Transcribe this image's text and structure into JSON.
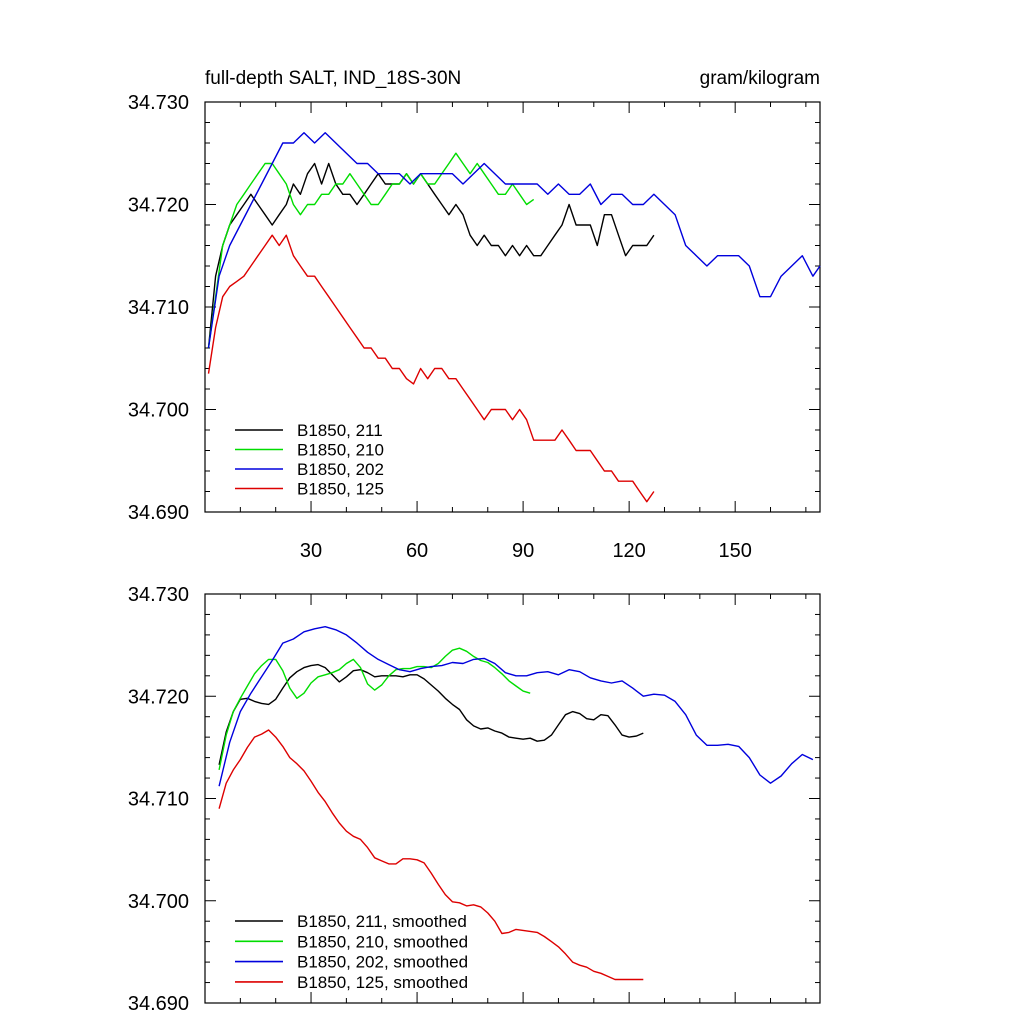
{
  "chart_data": [
    {
      "type": "line",
      "title_left": "full-depth SALT, IND_18S-30N",
      "title_right": "gram/kilogram",
      "xlim": [
        0,
        174
      ],
      "ylim": [
        34.69,
        34.73
      ],
      "x_ticks": [
        30,
        60,
        90,
        120,
        150
      ],
      "x_tick_labels": [
        "30",
        "60",
        "90",
        "120",
        "150"
      ],
      "y_ticks": [
        34.69,
        34.7,
        34.71,
        34.72,
        34.73
      ],
      "y_tick_labels": [
        "34.690",
        "34.700",
        "34.710",
        "34.720",
        "34.730"
      ],
      "legend_position": "bottom-left",
      "series": [
        {
          "name": "B1850, 211",
          "color": "#000000",
          "x": [
            1,
            3,
            5,
            7,
            9,
            11,
            13,
            15,
            17,
            19,
            21,
            23,
            25,
            27,
            29,
            31,
            33,
            35,
            37,
            39,
            41,
            43,
            45,
            47,
            49,
            51,
            53,
            55,
            57,
            59,
            61,
            63,
            65,
            67,
            69,
            71,
            73,
            75,
            77,
            79,
            81,
            83,
            85,
            87,
            89,
            91,
            93,
            95,
            97,
            99,
            101,
            103,
            105,
            107,
            109,
            111,
            113,
            115,
            117,
            119,
            121,
            123,
            125,
            127
          ],
          "y": [
            34.706,
            34.713,
            34.716,
            34.718,
            34.719,
            34.72,
            34.721,
            34.72,
            34.719,
            34.718,
            34.719,
            34.72,
            34.722,
            34.721,
            34.723,
            34.724,
            34.722,
            34.724,
            34.722,
            34.721,
            34.721,
            34.72,
            34.721,
            34.722,
            34.723,
            34.722,
            34.722,
            34.722,
            34.723,
            34.722,
            34.723,
            34.722,
            34.721,
            34.72,
            34.719,
            34.72,
            34.719,
            34.717,
            34.716,
            34.717,
            34.716,
            34.716,
            34.715,
            34.716,
            34.715,
            34.716,
            34.715,
            34.715,
            34.716,
            34.717,
            34.718,
            34.72,
            34.718,
            34.718,
            34.718,
            34.716,
            34.719,
            34.719,
            34.717,
            34.715,
            34.716,
            34.716,
            34.716,
            34.717
          ]
        },
        {
          "name": "B1850, 210",
          "color": "#00dd00",
          "x": [
            1,
            3,
            5,
            7,
            9,
            11,
            13,
            15,
            17,
            19,
            21,
            23,
            25,
            27,
            29,
            31,
            33,
            35,
            37,
            39,
            41,
            43,
            45,
            47,
            49,
            51,
            53,
            55,
            57,
            59,
            61,
            63,
            65,
            67,
            69,
            71,
            73,
            75,
            77,
            79,
            81,
            83,
            85,
            87,
            89,
            91,
            93
          ],
          "y": [
            34.706,
            34.711,
            34.716,
            34.718,
            34.72,
            34.721,
            34.722,
            34.723,
            34.724,
            34.724,
            34.723,
            34.722,
            34.72,
            34.719,
            34.72,
            34.72,
            34.721,
            34.721,
            34.722,
            34.722,
            34.723,
            34.722,
            34.721,
            34.72,
            34.72,
            34.721,
            34.722,
            34.722,
            34.723,
            34.722,
            34.723,
            34.722,
            34.722,
            34.723,
            34.724,
            34.725,
            34.724,
            34.723,
            34.724,
            34.723,
            34.722,
            34.721,
            34.721,
            34.722,
            34.721,
            34.72,
            34.7205
          ]
        },
        {
          "name": "B1850, 202",
          "color": "#0000dd",
          "x": [
            1,
            4,
            7,
            10,
            13,
            16,
            19,
            22,
            25,
            28,
            31,
            34,
            37,
            40,
            43,
            46,
            49,
            52,
            55,
            58,
            61,
            64,
            67,
            70,
            73,
            76,
            79,
            82,
            85,
            88,
            91,
            94,
            97,
            100,
            103,
            106,
            109,
            112,
            115,
            118,
            121,
            124,
            127,
            130,
            133,
            136,
            139,
            142,
            145,
            148,
            151,
            154,
            157,
            160,
            163,
            166,
            169,
            172,
            174
          ],
          "y": [
            34.706,
            34.713,
            34.716,
            34.718,
            34.72,
            34.722,
            34.724,
            34.726,
            34.726,
            34.727,
            34.726,
            34.727,
            34.726,
            34.725,
            34.724,
            34.724,
            34.723,
            34.723,
            34.723,
            34.722,
            34.723,
            34.723,
            34.723,
            34.723,
            34.722,
            34.723,
            34.724,
            34.723,
            34.722,
            34.722,
            34.722,
            34.722,
            34.721,
            34.722,
            34.721,
            34.721,
            34.722,
            34.72,
            34.721,
            34.721,
            34.72,
            34.72,
            34.721,
            34.72,
            34.719,
            34.716,
            34.715,
            34.714,
            34.715,
            34.715,
            34.715,
            34.714,
            34.711,
            34.711,
            34.713,
            34.714,
            34.715,
            34.713,
            34.714
          ]
        },
        {
          "name": "B1850, 125",
          "color": "#dd0000",
          "x": [
            1,
            3,
            5,
            7,
            9,
            11,
            13,
            15,
            17,
            19,
            21,
            23,
            25,
            27,
            29,
            31,
            33,
            35,
            37,
            39,
            41,
            43,
            45,
            47,
            49,
            51,
            53,
            55,
            57,
            59,
            61,
            63,
            65,
            67,
            69,
            71,
            73,
            75,
            77,
            79,
            81,
            83,
            85,
            87,
            89,
            91,
            93,
            95,
            97,
            99,
            101,
            103,
            105,
            107,
            109,
            111,
            113,
            115,
            117,
            119,
            121,
            123,
            125,
            127
          ],
          "y": [
            34.7035,
            34.708,
            34.711,
            34.712,
            34.7125,
            34.713,
            34.714,
            34.715,
            34.716,
            34.717,
            34.716,
            34.717,
            34.715,
            34.714,
            34.713,
            34.713,
            34.712,
            34.711,
            34.71,
            34.709,
            34.708,
            34.707,
            34.706,
            34.706,
            34.705,
            34.705,
            34.704,
            34.704,
            34.703,
            34.7025,
            34.704,
            34.703,
            34.704,
            34.704,
            34.703,
            34.703,
            34.702,
            34.701,
            34.7,
            34.699,
            34.7,
            34.7,
            34.7,
            34.699,
            34.7,
            34.699,
            34.697,
            34.697,
            34.697,
            34.697,
            34.698,
            34.697,
            34.696,
            34.696,
            34.696,
            34.695,
            34.694,
            34.694,
            34.693,
            34.693,
            34.693,
            34.692,
            34.691,
            34.692
          ]
        }
      ]
    },
    {
      "type": "line",
      "xlim": [
        0,
        174
      ],
      "ylim": [
        34.69,
        34.73
      ],
      "x_ticks": [
        30,
        60,
        90,
        120,
        150
      ],
      "y_ticks": [
        34.69,
        34.7,
        34.71,
        34.72,
        34.73
      ],
      "y_tick_labels": [
        "34.690",
        "34.700",
        "34.710",
        "34.720",
        "34.730"
      ],
      "legend_position": "bottom-left",
      "series": [
        {
          "name": "B1850, 211, smoothed",
          "color": "#000000",
          "x": [
            4,
            6,
            8,
            10,
            12,
            14,
            16,
            18,
            20,
            22,
            24,
            26,
            28,
            30,
            32,
            34,
            36,
            38,
            40,
            42,
            44,
            46,
            48,
            50,
            52,
            54,
            56,
            58,
            60,
            62,
            64,
            66,
            68,
            70,
            72,
            74,
            76,
            78,
            80,
            82,
            84,
            86,
            88,
            90,
            92,
            94,
            96,
            98,
            100,
            102,
            104,
            106,
            108,
            110,
            112,
            114,
            116,
            118,
            120,
            122,
            124
          ],
          "y": [
            34.7133,
            34.7165,
            34.7185,
            34.7197,
            34.7198,
            34.7195,
            34.7193,
            34.7192,
            34.7197,
            34.7208,
            34.7218,
            34.7224,
            34.7228,
            34.723,
            34.7231,
            34.7228,
            34.7221,
            34.7214,
            34.7219,
            34.7225,
            34.7226,
            34.7223,
            34.7219,
            34.722,
            34.722,
            34.722,
            34.7219,
            34.7221,
            34.7221,
            34.7217,
            34.7211,
            34.7205,
            34.7198,
            34.7192,
            34.7187,
            34.7177,
            34.7171,
            34.7168,
            34.7169,
            34.7166,
            34.7164,
            34.716,
            34.7159,
            34.7158,
            34.7159,
            34.7156,
            34.7157,
            34.7162,
            34.7172,
            34.7182,
            34.7185,
            34.7183,
            34.7178,
            34.7177,
            34.7182,
            34.7181,
            34.7172,
            34.7162,
            34.716,
            34.7161,
            34.7164
          ]
        },
        {
          "name": "B1850, 210, smoothed",
          "color": "#00dd00",
          "x": [
            4,
            6,
            8,
            10,
            12,
            14,
            16,
            18,
            20,
            22,
            24,
            26,
            28,
            30,
            32,
            34,
            36,
            38,
            40,
            42,
            44,
            46,
            48,
            50,
            52,
            54,
            56,
            58,
            60,
            62,
            64,
            66,
            68,
            70,
            72,
            74,
            76,
            78,
            80,
            82,
            84,
            86,
            88,
            90,
            92
          ],
          "y": [
            34.7128,
            34.7162,
            34.7185,
            34.7198,
            34.721,
            34.7222,
            34.723,
            34.7236,
            34.7236,
            34.7225,
            34.7208,
            34.7198,
            34.7203,
            34.7213,
            34.7219,
            34.7221,
            34.7223,
            34.7226,
            34.7232,
            34.7236,
            34.7228,
            34.7212,
            34.7206,
            34.7211,
            34.722,
            34.7226,
            34.7227,
            34.7227,
            34.7229,
            34.7229,
            34.7228,
            34.7232,
            34.7239,
            34.7245,
            34.7247,
            34.7244,
            34.7239,
            34.7235,
            34.7233,
            34.7228,
            34.7222,
            34.7215,
            34.721,
            34.7205,
            34.7203
          ]
        },
        {
          "name": "B1850, 202, smoothed",
          "color": "#0000dd",
          "x": [
            4,
            7,
            10,
            13,
            16,
            19,
            22,
            25,
            28,
            31,
            34,
            37,
            40,
            43,
            46,
            49,
            52,
            55,
            58,
            61,
            64,
            67,
            70,
            73,
            76,
            79,
            82,
            85,
            88,
            91,
            94,
            97,
            100,
            103,
            106,
            109,
            112,
            115,
            118,
            121,
            124,
            127,
            130,
            133,
            136,
            139,
            142,
            145,
            148,
            151,
            154,
            157,
            160,
            163,
            166,
            169,
            172
          ],
          "y": [
            34.7112,
            34.7155,
            34.7185,
            34.7203,
            34.7219,
            34.7235,
            34.7252,
            34.7256,
            34.7263,
            34.7266,
            34.7268,
            34.7265,
            34.726,
            34.7252,
            34.7243,
            34.7236,
            34.7231,
            34.7226,
            34.7224,
            34.7227,
            34.7229,
            34.723,
            34.7233,
            34.7232,
            34.7236,
            34.7237,
            34.7232,
            34.7223,
            34.722,
            34.722,
            34.7223,
            34.7224,
            34.7221,
            34.7226,
            34.7224,
            34.7218,
            34.7215,
            34.7213,
            34.7215,
            34.7208,
            34.72,
            34.7202,
            34.7201,
            34.7195,
            34.7182,
            34.7162,
            34.7152,
            34.7152,
            34.7153,
            34.7151,
            34.714,
            34.7123,
            34.7115,
            34.7122,
            34.7134,
            34.7143,
            34.7138
          ]
        },
        {
          "name": "B1850, 125, smoothed",
          "color": "#dd0000",
          "x": [
            4,
            6,
            8,
            10,
            12,
            14,
            16,
            18,
            20,
            22,
            24,
            26,
            28,
            30,
            32,
            34,
            36,
            38,
            40,
            42,
            44,
            46,
            48,
            50,
            52,
            54,
            56,
            58,
            60,
            62,
            64,
            66,
            68,
            70,
            72,
            74,
            76,
            78,
            80,
            82,
            84,
            86,
            88,
            90,
            92,
            94,
            96,
            98,
            100,
            102,
            104,
            106,
            108,
            110,
            112,
            114,
            116,
            118,
            120,
            122,
            124
          ],
          "y": [
            34.709,
            34.7115,
            34.7128,
            34.7138,
            34.715,
            34.716,
            34.7163,
            34.7167,
            34.716,
            34.7151,
            34.714,
            34.7134,
            34.7127,
            34.7117,
            34.7106,
            34.7097,
            34.7086,
            34.7076,
            34.7068,
            34.7063,
            34.706,
            34.7052,
            34.7042,
            34.7039,
            34.7036,
            34.7036,
            34.7041,
            34.7041,
            34.704,
            34.7037,
            34.7027,
            34.7016,
            34.7006,
            34.6999,
            34.6998,
            34.6995,
            34.6996,
            34.6994,
            34.6988,
            34.698,
            34.6968,
            34.6969,
            34.6972,
            34.6971,
            34.697,
            34.6969,
            34.6965,
            34.696,
            34.6955,
            34.6948,
            34.694,
            34.6937,
            34.6935,
            34.6931,
            34.6929,
            34.6926,
            34.6923,
            34.6923,
            34.6923,
            34.6923,
            34.6923
          ]
        }
      ]
    }
  ]
}
